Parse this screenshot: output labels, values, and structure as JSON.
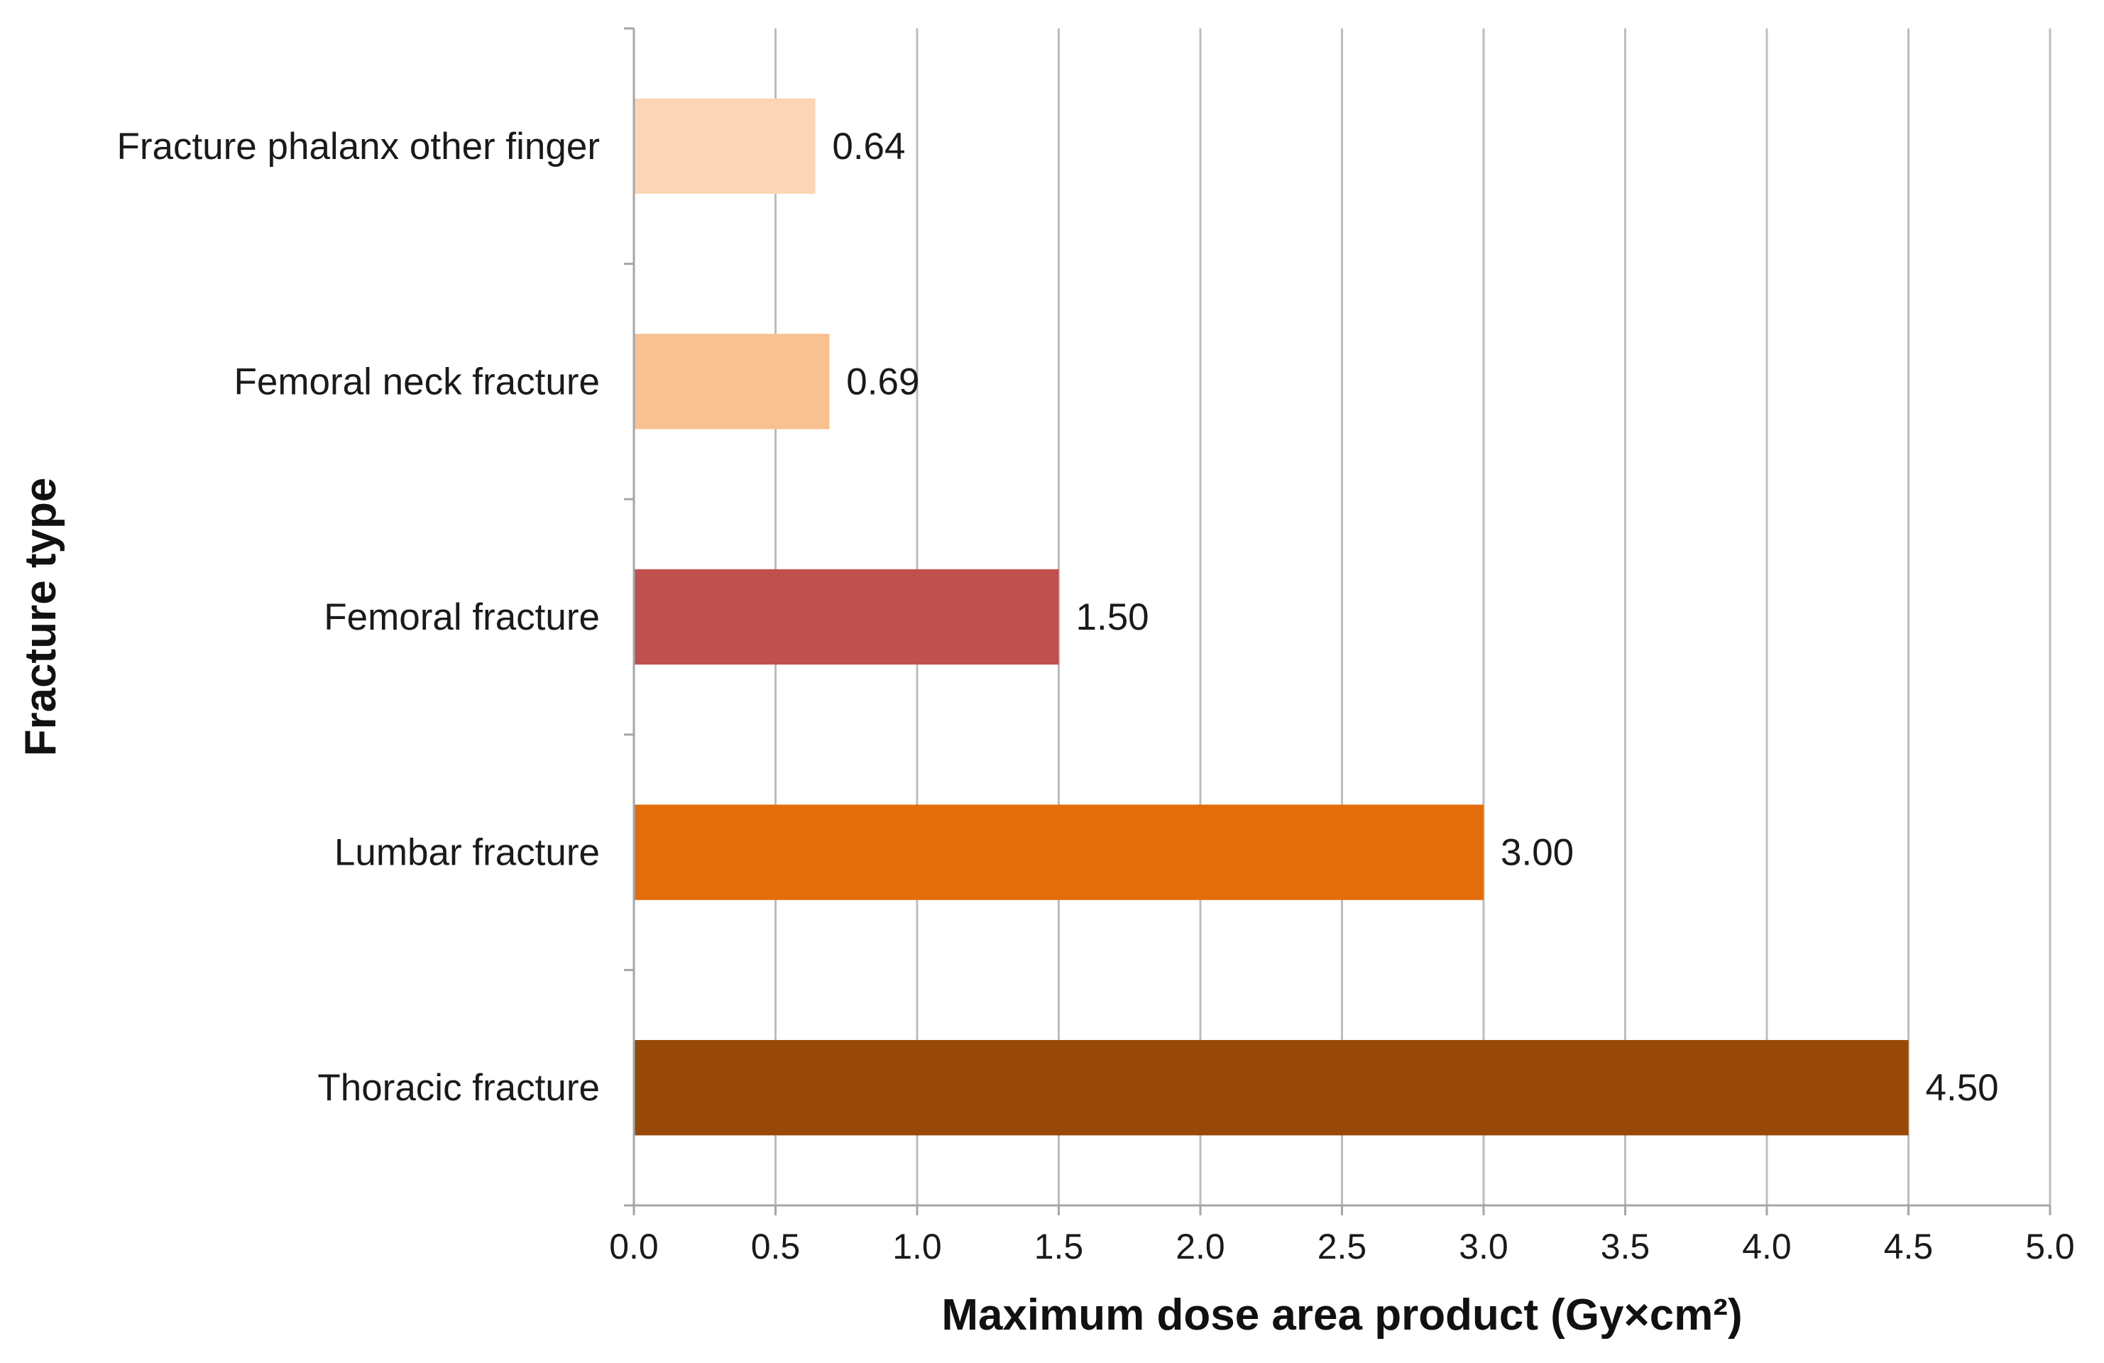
{
  "chart_data": {
    "type": "bar",
    "orientation": "horizontal",
    "categories": [
      "Fracture phalanx other finger",
      "Femoral neck fracture",
      "Femoral fracture",
      "Lumbar fracture",
      "Thoracic fracture"
    ],
    "values": [
      0.64,
      0.69,
      1.5,
      3.0,
      4.5
    ],
    "value_labels": [
      "0.64",
      "0.69",
      "1.50",
      "3.00",
      "4.50"
    ],
    "colors": [
      "#fbd5b5",
      "#f9c090",
      "#c0504d",
      "#e46c0a",
      "#984807"
    ],
    "xlabel": "Maximum dose area product (Gy×cm²)",
    "ylabel": "Fracture type",
    "xlim": [
      0,
      5
    ],
    "xticks": [
      "0.0",
      "0.5",
      "1.0",
      "1.5",
      "2.0",
      "2.5",
      "3.0",
      "3.5",
      "4.0",
      "4.5",
      "5.0"
    ],
    "grid": "vertical",
    "legend": "none"
  }
}
